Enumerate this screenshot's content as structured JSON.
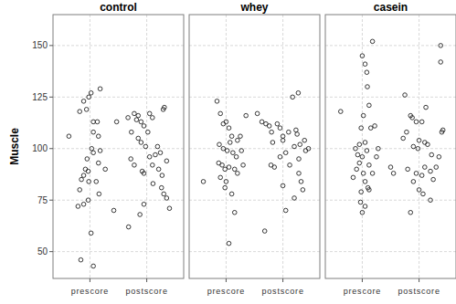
{
  "chart_data": [
    {
      "type": "scatter",
      "title": "control",
      "y_label": "Muscle",
      "grid": true,
      "marker": "circle",
      "xlim": [
        0.35,
        2.65
      ],
      "xticks": [
        {
          "value": 1,
          "label": "prescore"
        },
        {
          "value": 2,
          "label": "postscore"
        }
      ],
      "ylim": [
        37,
        165
      ],
      "yticks": [
        50,
        75,
        100,
        125,
        150
      ],
      "x": [
        0.63,
        0.82,
        0.89,
        0.94,
        0.98,
        1.02,
        1.18,
        1.06,
        1.13,
        1.06,
        1.15,
        1.03,
        1.18,
        0.95,
        0.97,
        0.89,
        0.85,
        0.92,
        0.82,
        1.15,
        1.27,
        1.06,
        0.98,
        0.97,
        1.16,
        0.89,
        0.79,
        1.11,
        1.02,
        0.84,
        1.06,
        1.42,
        1.47,
        1.67,
        1.73,
        1.78,
        1.85,
        1.82,
        1.9,
        1.95,
        2.05,
        2.1,
        2.29,
        2.31,
        2.02,
        1.85,
        1.9,
        1.98,
        2.19,
        2.24,
        2.05,
        1.72,
        1.78,
        1.92,
        1.95,
        2.1,
        2.15,
        2.35,
        2.21,
        2.27,
        2.26,
        2.3,
        2.35,
        2.4,
        2.11,
        1.95,
        1.88,
        1.68
      ],
      "y": [
        106,
        118,
        123,
        119,
        125,
        127,
        129,
        113,
        113,
        108,
        106,
        100,
        99,
        95,
        89,
        87,
        85,
        90,
        80,
        93,
        90,
        98,
        84,
        75,
        78,
        73,
        72,
        84,
        59,
        46,
        43,
        70,
        113,
        115,
        108,
        117,
        116,
        114,
        113,
        111,
        117,
        115,
        119,
        120,
        108,
        105,
        103,
        101,
        101,
        98,
        96,
        95,
        92,
        89,
        88,
        92,
        97,
        94,
        90,
        87,
        81,
        78,
        76,
        71,
        83,
        73,
        68,
        62
      ]
    },
    {
      "type": "scatter",
      "title": "whey",
      "grid": true,
      "marker": "circle",
      "tick_labels": "x",
      "xlim": [
        0.35,
        2.65
      ],
      "xticks": [
        {
          "value": 1,
          "label": "prescore"
        },
        {
          "value": 2,
          "label": "postscore"
        }
      ],
      "ylim": [
        37,
        165
      ],
      "yticks": [
        50,
        75,
        100,
        125,
        150
      ],
      "x": [
        0.6,
        0.84,
        0.9,
        0.95,
        1.0,
        1.05,
        1.1,
        1.2,
        1.25,
        1.35,
        1.55,
        1.63,
        0.88,
        0.95,
        1.02,
        1.07,
        1.12,
        1.18,
        0.87,
        0.93,
        0.98,
        1.05,
        1.15,
        1.2,
        0.9,
        1.0,
        0.98,
        1.1,
        1.15,
        1.05,
        1.27,
        1.3,
        1.7,
        1.76,
        1.8,
        1.82,
        1.9,
        1.95,
        2.0,
        2.1,
        2.2,
        2.23,
        2.25,
        2.3,
        2.4,
        2.45,
        2.38,
        2.05,
        1.95,
        2.0,
        2.12,
        2.28,
        2.28,
        2.32,
        2.0,
        1.85,
        1.79,
        2.17,
        2.27,
        2.2,
        2.05,
        1.68,
        2.35
      ],
      "y": [
        84,
        123,
        117,
        112,
        113,
        110,
        106,
        104,
        106,
        116,
        117,
        113,
        102,
        100,
        99,
        103,
        98,
        96,
        93,
        92,
        90,
        91,
        90,
        88,
        86,
        84,
        81,
        78,
        69,
        54,
        99,
        92,
        112,
        111,
        108,
        103,
        112,
        110,
        106,
        108,
        101,
        109,
        107,
        102,
        99,
        100,
        104,
        98,
        96,
        104,
        92,
        95,
        88,
        84,
        82,
        91,
        92,
        125,
        127,
        76,
        70,
        60,
        80
      ]
    },
    {
      "type": "scatter",
      "title": "casein",
      "grid": true,
      "marker": "circle",
      "tick_labels": "x",
      "xlim": [
        0.35,
        2.65
      ],
      "xticks": [
        {
          "value": 1,
          "label": "prescore"
        },
        {
          "value": 2,
          "label": "postscore"
        }
      ],
      "ylim": [
        37,
        165
      ],
      "yticks": [
        50,
        75,
        100,
        125,
        150
      ],
      "x": [
        0.62,
        0.84,
        0.88,
        0.92,
        0.95,
        0.98,
        1.02,
        1.0,
        1.05,
        1.08,
        1.18,
        1.09,
        1.12,
        1.15,
        1.22,
        1.05,
        0.95,
        1.0,
        1.08,
        1.12,
        1.18,
        1.02,
        0.9,
        1.05,
        1.1,
        1.12,
        0.98,
        0.97,
        1.05,
        1.0,
        1.28,
        1.25,
        1.5,
        1.55,
        1.75,
        1.85,
        1.88,
        1.95,
        2.05,
        2.0,
        2.1,
        1.78,
        1.72,
        1.9,
        1.98,
        2.15,
        2.22,
        2.4,
        2.42,
        2.38,
        2.38,
        1.8,
        1.95,
        2.05,
        2.1,
        2.2,
        2.25,
        1.9,
        2.0,
        2.07,
        2.2,
        1.85,
        2.3,
        2.35,
        2.12
      ],
      "y": [
        118,
        86,
        100,
        97,
        93,
        110,
        116,
        145,
        141,
        137,
        152,
        130,
        121,
        110,
        111,
        103,
        102,
        96,
        99,
        92,
        88,
        88,
        90,
        84,
        81,
        80,
        79,
        74,
        72,
        69,
        100,
        96,
        91,
        88,
        126,
        116,
        115,
        113,
        113,
        104,
        103,
        108,
        105,
        101,
        100,
        102,
        97,
        108,
        109,
        150,
        142,
        90,
        88,
        87,
        91,
        89,
        85,
        84,
        80,
        78,
        75,
        69,
        91,
        96,
        120
      ]
    }
  ]
}
